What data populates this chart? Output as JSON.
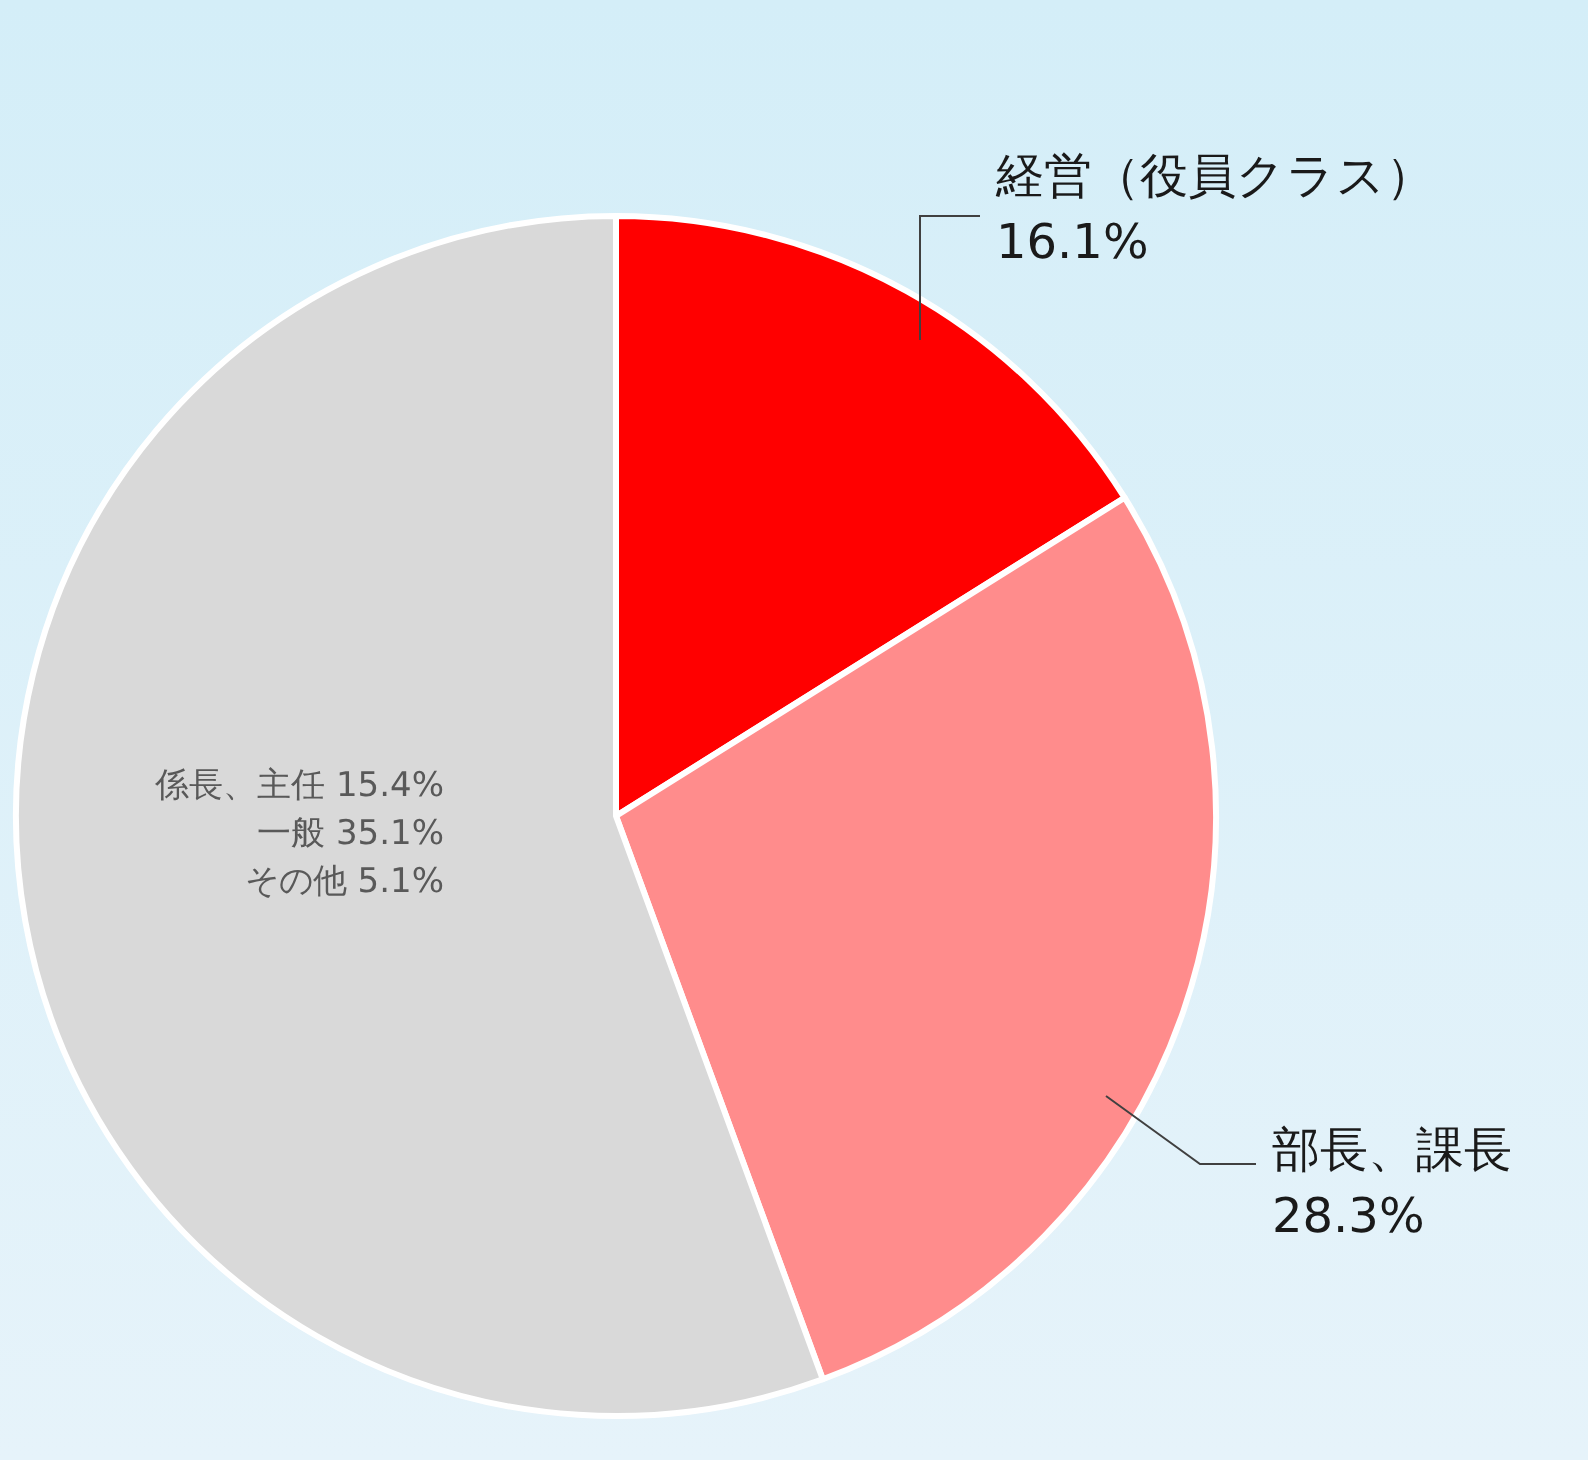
{
  "chart_data": {
    "type": "pie",
    "categories": [
      "経営（役員クラス）",
      "部長、課長",
      null
    ],
    "values": [
      16.1,
      28.3,
      55.6
    ],
    "colors": [
      "#ff0000",
      "#ff8c8c",
      "#d9d9d9"
    ],
    "value_labels": [
      "16.1%",
      "28.3%",
      null
    ],
    "annotations": [
      "係長、主任 15.4%",
      "一般 35.1%",
      "その他 5.1%"
    ]
  }
}
